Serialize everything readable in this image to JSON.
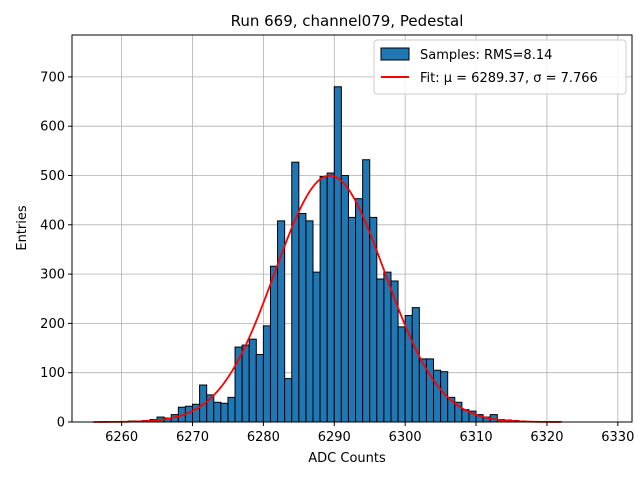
{
  "chart_data": {
    "type": "bar",
    "title": "Run 669, channel079, Pedestal",
    "xlabel": "ADC Counts",
    "ylabel": "Entries",
    "xlim": [
      6253,
      6332
    ],
    "ylim": [
      0,
      785
    ],
    "xticks": [
      6260,
      6270,
      6280,
      6290,
      6300,
      6310,
      6320,
      6330
    ],
    "yticks": [
      0,
      100,
      200,
      300,
      400,
      500,
      600,
      700
    ],
    "grid": true,
    "legend_position": "top-right",
    "colors": {
      "bar_fill": "#1f77b4",
      "bar_edge": "#000000",
      "fit_line": "#ff0000",
      "grid": "#b0b0b0"
    },
    "histogram": {
      "name": "Samples: RMS=8.14",
      "bin_left": [
        6256,
        6257,
        6258,
        6259,
        6260,
        6261,
        6262,
        6263,
        6264,
        6265,
        6266,
        6267,
        6268,
        6269,
        6270,
        6271,
        6272,
        6273,
        6274,
        6275,
        6276,
        6277,
        6278,
        6279,
        6280,
        6281,
        6282,
        6283,
        6284,
        6285,
        6286,
        6287,
        6288,
        6289,
        6290,
        6291,
        6292,
        6293,
        6294,
        6295,
        6296,
        6297,
        6298,
        6299,
        6300,
        6301,
        6302,
        6303,
        6304,
        6305,
        6306,
        6307,
        6308,
        6309,
        6310,
        6311,
        6312,
        6313,
        6314,
        6315,
        6316,
        6317,
        6318,
        6319,
        6320,
        6321
      ],
      "counts": [
        0,
        0,
        0,
        1,
        1,
        2,
        2,
        3,
        5,
        10,
        8,
        15,
        30,
        32,
        36,
        75,
        55,
        40,
        38,
        50,
        152,
        156,
        168,
        137,
        195,
        316,
        408,
        88,
        527,
        423,
        408,
        304,
        498,
        505,
        680,
        500,
        415,
        453,
        532,
        415,
        290,
        304,
        286,
        193,
        216,
        232,
        128,
        128,
        105,
        102,
        50,
        40,
        25,
        22,
        15,
        10,
        15,
        5,
        4,
        3,
        2,
        1,
        1,
        1,
        1,
        1
      ]
    },
    "fit": {
      "name": "Fit: μ = 6289.37, σ = 7.766",
      "mu": 6289.37,
      "sigma": 7.766,
      "amplitude": 500,
      "x_range": [
        6256,
        6322
      ]
    }
  }
}
